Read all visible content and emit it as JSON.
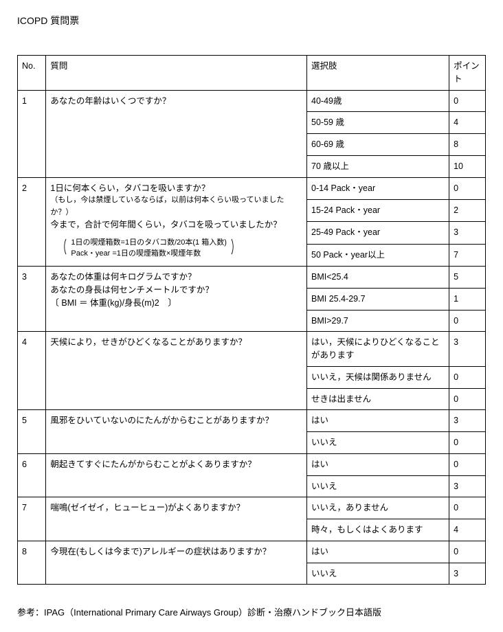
{
  "title": "ICOPD 質問票",
  "columns": [
    "No.",
    "質問",
    "選択肢",
    "ポイント"
  ],
  "rows": [
    {
      "no": "1",
      "question_lines": [
        "あなたの年齢はいくつですか？"
      ],
      "options": [
        {
          "label": "40-49歳",
          "points": "0"
        },
        {
          "label": "50-59 歳",
          "points": "4"
        },
        {
          "label": "60-69 歳",
          "points": "8"
        },
        {
          "label": "70 歳以上",
          "points": "10"
        }
      ]
    },
    {
      "no": "2",
      "question_lines": [
        "1日に何本くらい，タバコを吸いますか？",
        "（もし，今は禁煙しているならば，以前は何本くらい吸っていましたか？）",
        "今まで，合計で何年間くらい，タバコを吸っていましたか？"
      ],
      "formula_lines": [
        "1日の喫煙箱数=1日のタバコ数/20本(1 箱入数)",
        "Pack・year =1日の喫煙箱数×喫煙年数"
      ],
      "options": [
        {
          "label": "0-14 Pack・year",
          "points": "0"
        },
        {
          "label": "15-24 Pack・year",
          "points": "2"
        },
        {
          "label": "25-49 Pack・year",
          "points": "3"
        },
        {
          "label": "50 Pack・year以上",
          "points": "7"
        }
      ]
    },
    {
      "no": "3",
      "question_lines": [
        "あなたの体重は何キログラムですか？",
        "あなたの身長は何センチメートルですか？",
        "〔 BMI ＝ 体重(kg)/身長(m)2　〕"
      ],
      "options": [
        {
          "label": "BMI<25.4",
          "points": "5"
        },
        {
          "label": "BMI  25.4-29.7",
          "points": "1"
        },
        {
          "label": "BMI>29.7",
          "points": "0"
        }
      ]
    },
    {
      "no": "4",
      "question_lines": [
        "天候により，せきがひどくなることがありますか？"
      ],
      "options": [
        {
          "label": "はい，天候によりひどくなることがあります",
          "points": "3"
        },
        {
          "label": "いいえ，天候は関係ありません",
          "points": "0"
        },
        {
          "label": "せきは出ません",
          "points": "0"
        }
      ]
    },
    {
      "no": "5",
      "question_lines": [
        "風邪をひいていないのにたんがからむことがありますか？"
      ],
      "options": [
        {
          "label": "はい",
          "points": "3"
        },
        {
          "label": "いいえ",
          "points": "0"
        }
      ]
    },
    {
      "no": "6",
      "question_lines": [
        "朝起きてすぐにたんがからむことがよくありますか？"
      ],
      "options": [
        {
          "label": "はい",
          "points": "0"
        },
        {
          "label": "いいえ",
          "points": "3"
        }
      ]
    },
    {
      "no": "7",
      "question_lines": [
        "喘鳴(ゼイゼイ，ヒューヒュー)がよくありますか？"
      ],
      "options": [
        {
          "label": "いいえ，ありません",
          "points": "0"
        },
        {
          "label": "時々，もしくはよくあります",
          "points": "4"
        }
      ]
    },
    {
      "no": "8",
      "question_lines": [
        "今現在(もしくは今まで)アレルギーの症状はありますか？"
      ],
      "options": [
        {
          "label": "はい",
          "points": "0"
        },
        {
          "label": "いいえ",
          "points": "3"
        }
      ]
    }
  ],
  "footer": "参考：IPAG（International Primary Care Airways Group）診断・治療ハンドブック日本語版"
}
